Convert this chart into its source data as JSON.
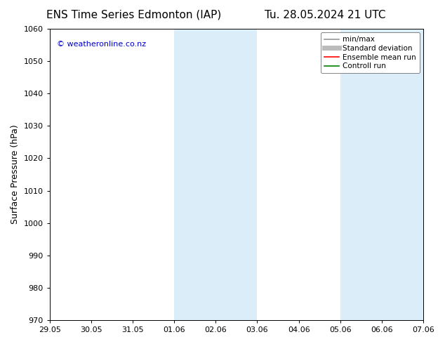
{
  "title_left": "ENS Time Series Edmonton (IAP)",
  "title_right": "Tu. 28.05.2024 21 UTC",
  "ylabel": "Surface Pressure (hPa)",
  "ylim": [
    970,
    1060
  ],
  "yticks": [
    970,
    980,
    990,
    1000,
    1010,
    1020,
    1030,
    1040,
    1050,
    1060
  ],
  "x_labels": [
    "29.05",
    "30.05",
    "31.05",
    "01.06",
    "02.06",
    "03.06",
    "04.06",
    "05.06",
    "06.06",
    "07.06"
  ],
  "x_values": [
    0,
    1,
    2,
    3,
    4,
    5,
    6,
    7,
    8,
    9
  ],
  "xlim": [
    0,
    9
  ],
  "shaded_regions": [
    {
      "x_start": 3,
      "x_end": 5,
      "color": "#daedf8"
    },
    {
      "x_start": 7,
      "x_end": 9,
      "color": "#daedf8"
    }
  ],
  "copyright_text": "© weatheronline.co.nz",
  "copyright_color": "#0000cc",
  "background_color": "#ffffff",
  "legend_items": [
    {
      "label": "min/max",
      "color": "#999999",
      "lw": 1.2,
      "style": "solid"
    },
    {
      "label": "Standard deviation",
      "color": "#bbbbbb",
      "lw": 5,
      "style": "solid"
    },
    {
      "label": "Ensemble mean run",
      "color": "#ff0000",
      "lw": 1.2,
      "style": "solid"
    },
    {
      "label": "Controll run",
      "color": "#008000",
      "lw": 1.2,
      "style": "solid"
    }
  ],
  "title_fontsize": 11,
  "ylabel_fontsize": 9,
  "tick_fontsize": 8,
  "legend_fontsize": 7.5,
  "copyright_fontsize": 8
}
